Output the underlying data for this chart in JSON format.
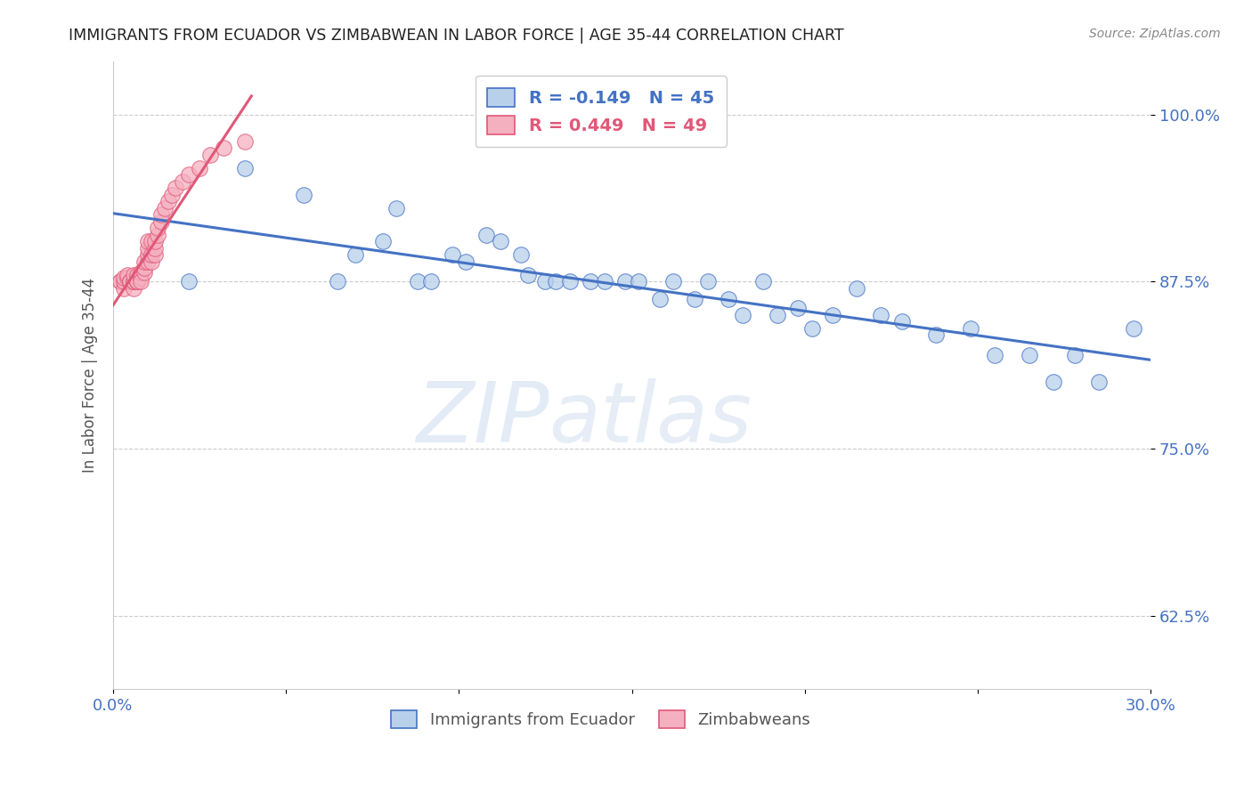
{
  "title": "IMMIGRANTS FROM ECUADOR VS ZIMBABWEAN IN LABOR FORCE | AGE 35-44 CORRELATION CHART",
  "source": "Source: ZipAtlas.com",
  "ylabel": "In Labor Force | Age 35-44",
  "xlim": [
    0.0,
    0.3
  ],
  "ylim": [
    0.57,
    1.04
  ],
  "yticks": [
    0.625,
    0.75,
    0.875,
    1.0
  ],
  "ytick_labels": [
    "62.5%",
    "75.0%",
    "87.5%",
    "100.0%"
  ],
  "xticks": [
    0.0,
    0.05,
    0.1,
    0.15,
    0.2,
    0.25,
    0.3
  ],
  "xtick_labels": [
    "0.0%",
    "",
    "",
    "",
    "",
    "",
    "30.0%"
  ],
  "ecuador_R": -0.149,
  "ecuador_N": 45,
  "zimbabwe_R": 0.449,
  "zimbabwe_N": 49,
  "ecuador_color": "#b8d0ea",
  "zimbabwe_color": "#f5b0c0",
  "ecuador_line_color": "#4472c4",
  "zimbabwe_line_color": "#e05878",
  "watermark_zip": "ZIP",
  "watermark_atlas": "atlas",
  "ecuador_x": [
    0.005,
    0.022,
    0.038,
    0.055,
    0.065,
    0.07,
    0.078,
    0.082,
    0.088,
    0.092,
    0.098,
    0.102,
    0.108,
    0.112,
    0.118,
    0.12,
    0.125,
    0.128,
    0.132,
    0.138,
    0.142,
    0.148,
    0.152,
    0.158,
    0.162,
    0.168,
    0.172,
    0.178,
    0.182,
    0.188,
    0.192,
    0.198,
    0.202,
    0.208,
    0.215,
    0.222,
    0.228,
    0.238,
    0.248,
    0.255,
    0.265,
    0.272,
    0.278,
    0.285,
    0.295
  ],
  "ecuador_y": [
    0.875,
    0.875,
    0.96,
    0.94,
    0.875,
    0.895,
    0.905,
    0.93,
    0.875,
    0.875,
    0.895,
    0.89,
    0.91,
    0.905,
    0.895,
    0.88,
    0.875,
    0.875,
    0.875,
    0.875,
    0.875,
    0.875,
    0.875,
    0.862,
    0.875,
    0.862,
    0.875,
    0.862,
    0.85,
    0.875,
    0.85,
    0.855,
    0.84,
    0.85,
    0.87,
    0.85,
    0.845,
    0.835,
    0.84,
    0.82,
    0.82,
    0.8,
    0.82,
    0.8,
    0.84
  ],
  "zimbabwe_x": [
    0.002,
    0.002,
    0.003,
    0.003,
    0.003,
    0.004,
    0.004,
    0.005,
    0.005,
    0.005,
    0.006,
    0.006,
    0.006,
    0.006,
    0.007,
    0.007,
    0.007,
    0.007,
    0.007,
    0.008,
    0.008,
    0.008,
    0.009,
    0.009,
    0.009,
    0.01,
    0.01,
    0.01,
    0.01,
    0.011,
    0.011,
    0.011,
    0.012,
    0.012,
    0.012,
    0.013,
    0.013,
    0.014,
    0.014,
    0.015,
    0.016,
    0.017,
    0.018,
    0.02,
    0.022,
    0.025,
    0.028,
    0.032,
    0.038
  ],
  "zimbabwe_y": [
    0.875,
    0.875,
    0.87,
    0.875,
    0.878,
    0.878,
    0.88,
    0.875,
    0.875,
    0.875,
    0.87,
    0.875,
    0.875,
    0.88,
    0.875,
    0.88,
    0.875,
    0.875,
    0.875,
    0.878,
    0.882,
    0.875,
    0.882,
    0.885,
    0.89,
    0.89,
    0.895,
    0.9,
    0.905,
    0.89,
    0.895,
    0.905,
    0.895,
    0.9,
    0.905,
    0.91,
    0.915,
    0.92,
    0.925,
    0.93,
    0.935,
    0.94,
    0.945,
    0.95,
    0.955,
    0.96,
    0.97,
    0.975,
    0.98
  ]
}
